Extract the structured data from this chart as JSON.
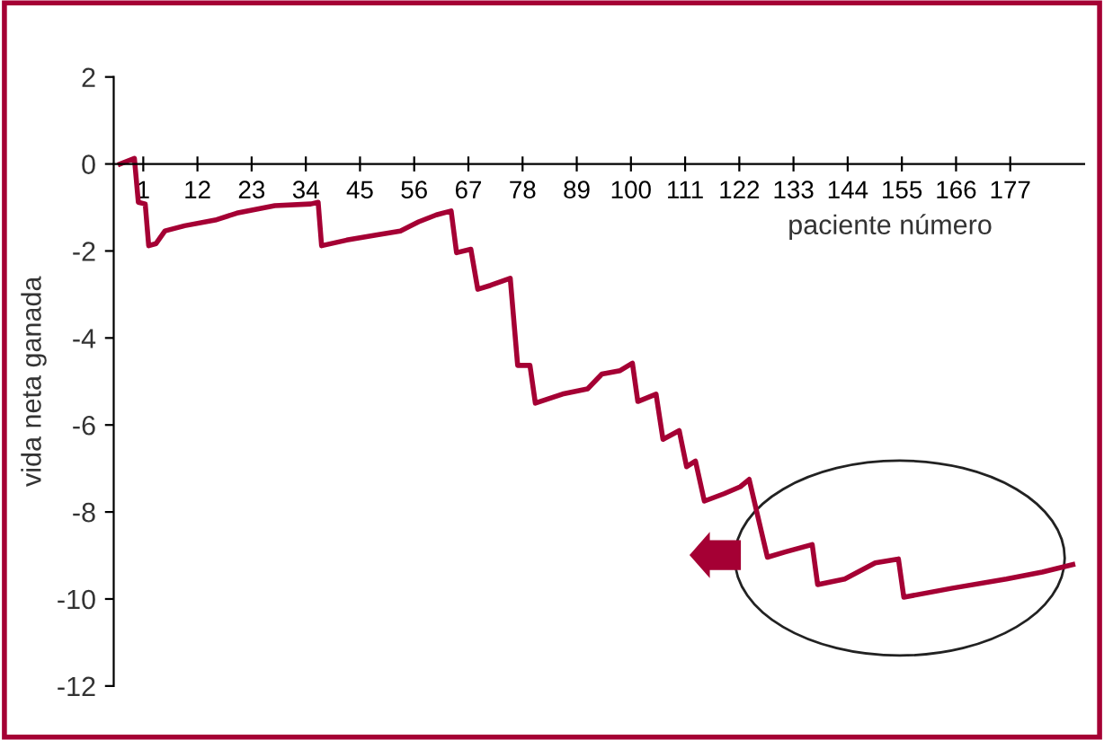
{
  "chart_data": {
    "type": "line",
    "xlabel": "paciente número",
    "ylabel": "vida neta ganada",
    "x": [
      -3.7,
      -0.8,
      0,
      1.4,
      2.1,
      3.6,
      5.4,
      9.4,
      15.6,
      20.0,
      27.7,
      35.0,
      36.5,
      37.2,
      42.3,
      48.5,
      53.2,
      56.9,
      60.5,
      63.5,
      64.6,
      67.5,
      68.9,
      71.5,
      75.5,
      77.0,
      79.5,
      80.6,
      86.1,
      91.2,
      94.1,
      97.8,
      100.3,
      101.4,
      105.1,
      106.5,
      109.8,
      111.3,
      113.1,
      114.9,
      118.9,
      122.2,
      124.0,
      127.7,
      131.3,
      136.8,
      137.9,
      143.4,
      149.6,
      154.3,
      155.4,
      165.3,
      176.2,
      183.5,
      189.7
    ],
    "series": [
      {
        "color": "#a50034",
        "values": [
          0,
          0.13,
          -0.88,
          -0.92,
          -1.88,
          -1.83,
          -1.54,
          -1.42,
          -1.29,
          -1.13,
          -0.96,
          -0.92,
          -0.88,
          -1.88,
          -1.75,
          -1.63,
          -1.54,
          -1.33,
          -1.17,
          -1.08,
          -2.04,
          -1.96,
          -2.88,
          -2.79,
          -2.63,
          -4.63,
          -4.63,
          -5.5,
          -5.29,
          -5.17,
          -4.83,
          -4.75,
          -4.58,
          -5.46,
          -5.29,
          -6.33,
          -6.13,
          -6.96,
          -6.83,
          -7.75,
          -7.58,
          -7.42,
          -7.25,
          -9.04,
          -8.92,
          -8.75,
          -9.67,
          -9.54,
          -9.17,
          -9.08,
          -9.96,
          -9.75,
          -9.54,
          -9.38,
          -9.21
        ]
      }
    ],
    "xlim": [
      -5,
      192
    ],
    "xticks": [
      1,
      12,
      23,
      34,
      45,
      56,
      67,
      78,
      89,
      100,
      111,
      122,
      133,
      144,
      155,
      166,
      177
    ],
    "ylim": [
      -12,
      2
    ],
    "yticks": [
      2,
      0,
      -2,
      -4,
      -6,
      -8,
      -10,
      -12
    ],
    "grid": false,
    "legend": false,
    "marker": "none",
    "line_style": "solid"
  }
}
